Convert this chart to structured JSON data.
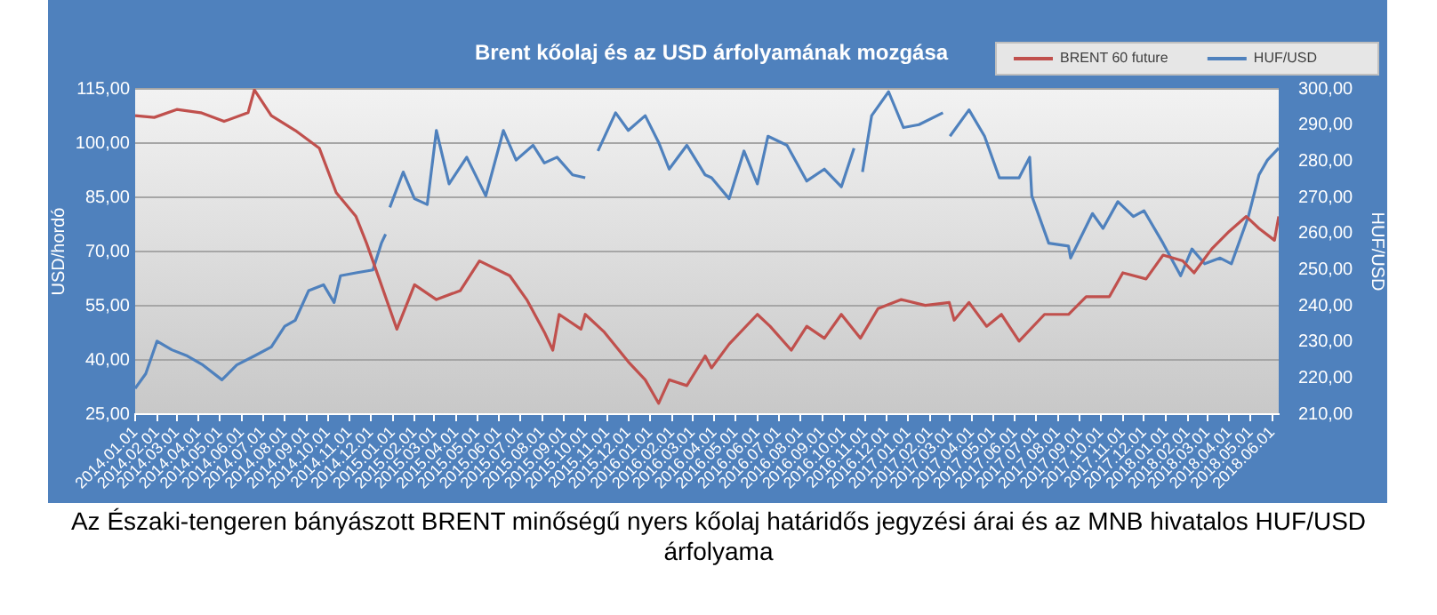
{
  "chart_data": {
    "type": "line",
    "title": "Brent kőolaj és az USD árfolyamának mozgása",
    "ylabel": "USD/hordó",
    "y2label": "HUF/USD",
    "annotations": [
      "Az Északi-tengeren bányászott BRENT minőségű nyers kőolaj határidős jegyzési árai és az MNB hivatalos HUF/USD árfolyama"
    ],
    "legend": "top right",
    "grid": "y",
    "marker": "none",
    "line_style": "solid",
    "xlim": [
      "2014-01-01",
      "2018-06-10"
    ],
    "xticks": [
      {
        "value": "2014-01-01",
        "label": "2014.01.01"
      },
      {
        "value": "2014-02-01",
        "label": "2014.02.01"
      },
      {
        "value": "2014-03-01",
        "label": "2014.03.01"
      },
      {
        "value": "2014-04-01",
        "label": "2014.04.01"
      },
      {
        "value": "2014-05-01",
        "label": "2014.05.01"
      },
      {
        "value": "2014-06-01",
        "label": "2014.06.01"
      },
      {
        "value": "2014-07-01",
        "label": "2014.07.01"
      },
      {
        "value": "2014-08-01",
        "label": "2014.08.01"
      },
      {
        "value": "2014-09-01",
        "label": "2014.09.01"
      },
      {
        "value": "2014-10-01",
        "label": "2014.10.01"
      },
      {
        "value": "2014-11-01",
        "label": "2014.11.01"
      },
      {
        "value": "2014-12-01",
        "label": "2014.12.01"
      },
      {
        "value": "2015-01-01",
        "label": "2015.01.01"
      },
      {
        "value": "2015-02-01",
        "label": "2015.02.01"
      },
      {
        "value": "2015-03-01",
        "label": "2015.03.01"
      },
      {
        "value": "2015-04-01",
        "label": "2015.04.01"
      },
      {
        "value": "2015-05-01",
        "label": "2015.05.01"
      },
      {
        "value": "2015-06-01",
        "label": "2015.06.01"
      },
      {
        "value": "2015-07-01",
        "label": "2015.07.01"
      },
      {
        "value": "2015-08-01",
        "label": "2015.08.01"
      },
      {
        "value": "2015-09-01",
        "label": "2015.09.01"
      },
      {
        "value": "2015-10-01",
        "label": "2015.10.01"
      },
      {
        "value": "2015-11-01",
        "label": "2015.11.01"
      },
      {
        "value": "2015-12-01",
        "label": "2015.12.01"
      },
      {
        "value": "2016-01-01",
        "label": "2016.01.01"
      },
      {
        "value": "2016-02-01",
        "label": "2016.02.01"
      },
      {
        "value": "2016-03-01",
        "label": "2016.03.01"
      },
      {
        "value": "2016-04-01",
        "label": "2016.04.01"
      },
      {
        "value": "2016-05-01",
        "label": "2016.05.01"
      },
      {
        "value": "2016-06-01",
        "label": "2016.06.01"
      },
      {
        "value": "2016-07-01",
        "label": "2016.07.01"
      },
      {
        "value": "2016-08-01",
        "label": "2016.08.01"
      },
      {
        "value": "2016-09-01",
        "label": "2016.09.01"
      },
      {
        "value": "2016-10-01",
        "label": "2016.10.01"
      },
      {
        "value": "2016-11-01",
        "label": "2016.11.01"
      },
      {
        "value": "2016-12-01",
        "label": "2016.12.01"
      },
      {
        "value": "2017-01-01",
        "label": "2017.01.01"
      },
      {
        "value": "2017-02-01",
        "label": "2017.02.01"
      },
      {
        "value": "2017-03-01",
        "label": "2017.03.01"
      },
      {
        "value": "2017-04-01",
        "label": "2017.04.01"
      },
      {
        "value": "2017-05-01",
        "label": "2017.05.01"
      },
      {
        "value": "2017-06-01",
        "label": "2017.06.01"
      },
      {
        "value": "2017-07-01",
        "label": "2017.07.01"
      },
      {
        "value": "2017-08-01",
        "label": "2017.08.01"
      },
      {
        "value": "2017-09-01",
        "label": "2017.09.01"
      },
      {
        "value": "2017-10-01",
        "label": "2017.10.01"
      },
      {
        "value": "2017-11-01",
        "label": "2017.11.01"
      },
      {
        "value": "2017-12-01",
        "label": "2017.12.01"
      },
      {
        "value": "2018-01-01",
        "label": "2018.01.01"
      },
      {
        "value": "2018-02-01",
        "label": "2018.02.01"
      },
      {
        "value": "2018-03-01",
        "label": "2018.03.01"
      },
      {
        "value": "2018-04-01",
        "label": "2018.04.01"
      },
      {
        "value": "2018-05-01",
        "label": "2018.05.01"
      },
      {
        "value": "2018-06-01",
        "label": "2018.06.01"
      }
    ],
    "ylim": [
      25,
      115
    ],
    "yticks": [
      {
        "value": 25,
        "label": "25,00"
      },
      {
        "value": 40,
        "label": "40,00"
      },
      {
        "value": 55,
        "label": "55,00"
      },
      {
        "value": 70,
        "label": "70,00"
      },
      {
        "value": 85,
        "label": "85,00"
      },
      {
        "value": 100,
        "label": "100,00"
      },
      {
        "value": 115,
        "label": "115,00"
      }
    ],
    "y2lim": [
      210,
      300
    ],
    "y2ticks": [
      {
        "value": 210,
        "label": "210,00"
      },
      {
        "value": 220,
        "label": "220,00"
      },
      {
        "value": 230,
        "label": "230,00"
      },
      {
        "value": 240,
        "label": "240,00"
      },
      {
        "value": 250,
        "label": "250,00"
      },
      {
        "value": 260,
        "label": "260,00"
      },
      {
        "value": 270,
        "label": "270,00"
      },
      {
        "value": 280,
        "label": "280,00"
      },
      {
        "value": 290,
        "label": "290,00"
      },
      {
        "value": 300,
        "label": "300,00"
      }
    ],
    "series": [
      {
        "name": "BRENT 60 future",
        "color": "#c0504d",
        "x": [
          "2014-01-01",
          "2014-01-28",
          "2014-03-01",
          "2014-04-04",
          "2014-05-07",
          "2014-06-10",
          "2014-06-19",
          "2014-07-13",
          "2014-08-16",
          "2014-09-19",
          "2014-10-13",
          "2014-11-10",
          "2014-11-25",
          "2014-12-13",
          "2015-01-07",
          "2015-02-01",
          "2015-03-04",
          "2015-04-07",
          "2015-05-04",
          "2015-06-16",
          "2015-07-10",
          "2015-08-04",
          "2015-08-16",
          "2015-08-25",
          "2015-09-25",
          "2015-10-01",
          "2015-10-28",
          "2015-12-01",
          "2015-12-25",
          "2016-01-13",
          "2016-01-28",
          "2016-02-22",
          "2016-03-19",
          "2016-03-28",
          "2016-04-22",
          "2016-06-01",
          "2016-06-19",
          "2016-07-19",
          "2016-08-10",
          "2016-09-04",
          "2016-09-28",
          "2016-10-25",
          "2016-11-19",
          "2016-12-22",
          "2017-01-25",
          "2017-02-28",
          "2017-03-07",
          "2017-03-28",
          "2017-04-22",
          "2017-05-13",
          "2017-06-07",
          "2017-07-13",
          "2017-08-16",
          "2017-09-10",
          "2017-10-13",
          "2017-11-01",
          "2017-12-04",
          "2017-12-28",
          "2018-01-25",
          "2018-02-10",
          "2018-03-07",
          "2018-04-01",
          "2018-04-25",
          "2018-05-13",
          "2018-06-04",
          "2018-06-10"
        ],
        "values": [
          107.6,
          107.1,
          109.3,
          108.4,
          106,
          108.4,
          114.7,
          107.6,
          103.5,
          98.6,
          86.3,
          79.7,
          72.3,
          62.4,
          48.5,
          60.8,
          56.7,
          59.2,
          67.4,
          63.3,
          56.7,
          47.7,
          42.7,
          52.6,
          48.5,
          52.6,
          47.7,
          39.5,
          34.5,
          28,
          34.5,
          32.9,
          41.1,
          37.8,
          44.4,
          52.6,
          49.3,
          42.7,
          49.3,
          46,
          52.6,
          46,
          54.2,
          56.7,
          55.1,
          55.9,
          51,
          55.9,
          49.3,
          52.6,
          45.2,
          52.6,
          52.6,
          57.5,
          57.5,
          64.1,
          62.4,
          69,
          67.4,
          64.1,
          70.7,
          75.6,
          79.7,
          76.4,
          73.1,
          79.7
        ]
      },
      {
        "name": "HUF/USD",
        "color": "#4f81bd",
        "axis": "y2",
        "x": [
          "2014-01-01",
          "2014-01-16",
          "2014-02-01",
          "2014-02-22",
          "2014-03-16",
          "2014-04-07",
          "2014-05-04",
          "2014-05-25",
          "2014-06-19",
          "2014-07-13",
          "2014-08-01",
          "2014-08-16",
          "2014-09-04",
          "2014-09-25",
          "2014-10-10",
          "2014-10-19",
          "2014-11-10",
          "2014-12-04",
          "2014-12-16",
          "2014-12-22",
          "2014-12-25",
          "2014-12-28",
          "2015-01-16",
          "2015-02-01",
          "2015-02-19",
          "2015-03-04",
          "2015-03-22",
          "2015-04-16",
          "2015-05-13",
          "2015-06-07",
          "2015-06-25",
          "2015-07-19",
          "2015-08-04",
          "2015-08-22",
          "2015-09-13",
          "2015-10-01",
          "2015-10-10",
          "2015-10-19",
          "2015-11-13",
          "2015-12-01",
          "2015-12-25",
          "2016-01-13",
          "2016-01-28",
          "2016-02-22",
          "2016-03-19",
          "2016-03-28",
          "2016-04-22",
          "2016-05-13",
          "2016-06-01",
          "2016-06-16",
          "2016-07-13",
          "2016-08-10",
          "2016-09-04",
          "2016-09-28",
          "2016-10-16",
          "2016-10-22",
          "2016-10-28",
          "2016-11-10",
          "2016-12-04",
          "2016-12-25",
          "2017-01-16",
          "2017-02-19",
          "2017-02-25",
          "2017-03-01",
          "2017-03-28",
          "2017-04-19",
          "2017-05-10",
          "2017-06-07",
          "2017-06-22",
          "2017-06-25",
          "2017-07-19",
          "2017-08-16",
          "2017-08-19",
          "2017-09-19",
          "2017-10-04",
          "2017-10-25",
          "2017-11-16",
          "2017-12-01",
          "2017-12-28",
          "2018-01-22",
          "2018-02-07",
          "2018-02-25",
          "2018-03-19",
          "2018-04-04",
          "2018-04-28",
          "2018-05-13",
          "2018-05-25",
          "2018-06-10"
        ],
        "values": [
          217.1,
          221.2,
          230.2,
          227.8,
          226.1,
          223.6,
          219.5,
          223.6,
          226.1,
          228.6,
          234.3,
          236,
          244.2,
          245.8,
          240.9,
          248.3,
          249.1,
          249.9,
          257.3,
          259.8,
          null,
          267.2,
          277,
          269.6,
          268,
          288.5,
          273.7,
          281.1,
          270.4,
          288.5,
          280.3,
          284.4,
          279.5,
          281.1,
          276.2,
          275.4,
          null,
          282.8,
          293.4,
          288.5,
          292.6,
          285.2,
          277.8,
          284.4,
          276.2,
          275.4,
          269.6,
          282.8,
          273.7,
          286.9,
          284.4,
          274.5,
          277.8,
          272.9,
          283.6,
          null,
          277,
          292.6,
          299.2,
          289.3,
          290.1,
          293.4,
          null,
          286.9,
          294.2,
          286.9,
          275.4,
          275.4,
          281.1,
          270.4,
          257.3,
          256.5,
          253.2,
          265.5,
          261.4,
          268.8,
          264.7,
          266.3,
          257.3,
          248.3,
          255.7,
          251.6,
          253.2,
          251.6,
          264.7,
          276.2,
          280.3,
          283.6
        ]
      }
    ]
  }
}
